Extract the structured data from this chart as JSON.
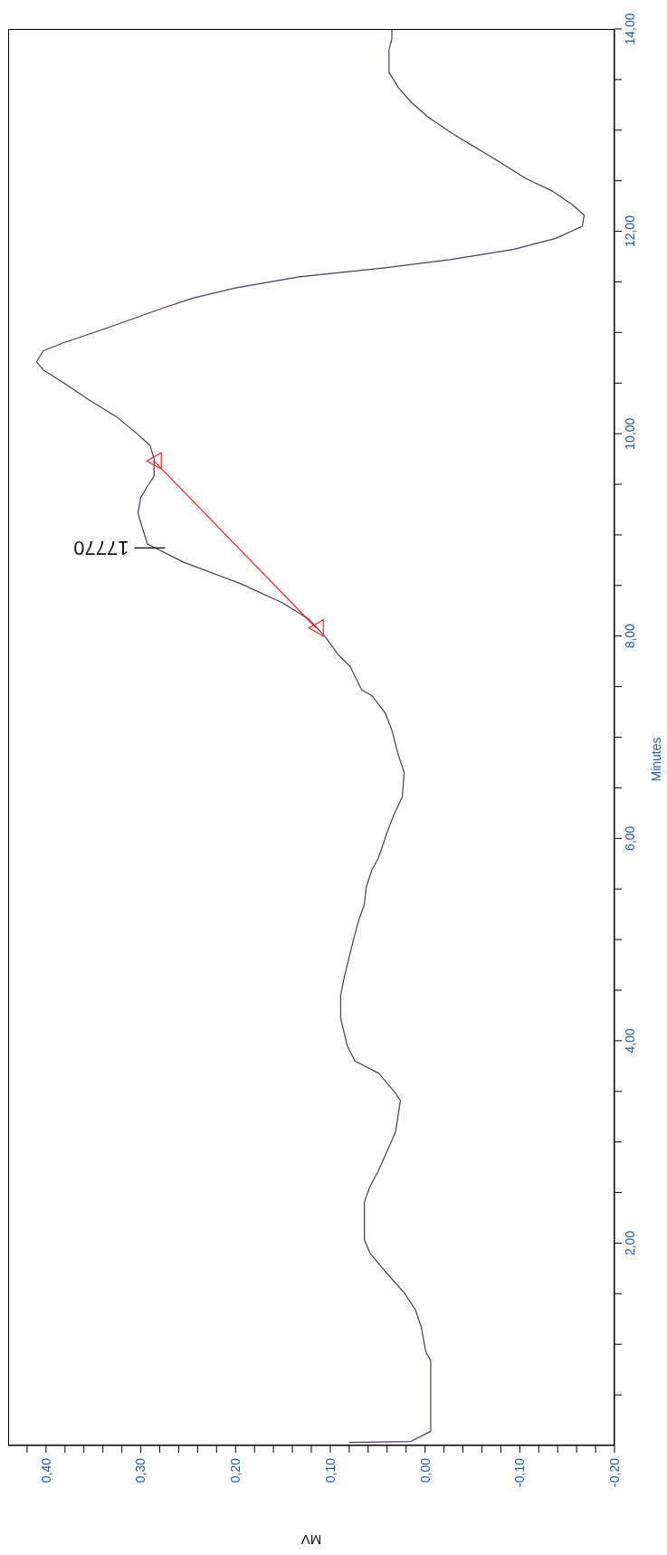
{
  "chart_data": {
    "type": "line",
    "xlabel": "MV",
    "ylabel": "Minutes",
    "xlim": [
      0.44,
      -0.2
    ],
    "ylim": [
      0,
      14
    ],
    "yticks": [
      {
        "value": 0.5,
        "label": null
      },
      {
        "value": 1,
        "label": null
      },
      {
        "value": 1.5,
        "label": null
      },
      {
        "value": 2,
        "label": "2,00"
      },
      {
        "value": 2.5,
        "label": null
      },
      {
        "value": 3,
        "label": null
      },
      {
        "value": 3.5,
        "label": null
      },
      {
        "value": 4,
        "label": "4,00"
      },
      {
        "value": 4.5,
        "label": null
      },
      {
        "value": 5,
        "label": null
      },
      {
        "value": 5.5,
        "label": null
      },
      {
        "value": 6,
        "label": "6,00"
      },
      {
        "value": 6.5,
        "label": null
      },
      {
        "value": 7,
        "label": null
      },
      {
        "value": 7.5,
        "label": null
      },
      {
        "value": 8,
        "label": "8,00"
      },
      {
        "value": 8.5,
        "label": null
      },
      {
        "value": 9,
        "label": null
      },
      {
        "value": 9.5,
        "label": null
      },
      {
        "value": 10,
        "label": "10,00"
      },
      {
        "value": 10.5,
        "label": null
      },
      {
        "value": 11,
        "label": null
      },
      {
        "value": 11.5,
        "label": null
      },
      {
        "value": 12,
        "label": "12,00"
      },
      {
        "value": 12.5,
        "label": null
      },
      {
        "value": 13,
        "label": null
      },
      {
        "value": 13.5,
        "label": null
      },
      {
        "value": 14,
        "label": "14,00"
      }
    ],
    "xticks": [
      {
        "value": -0.2,
        "label": "-0,20"
      },
      {
        "value": -0.18,
        "label": null
      },
      {
        "value": -0.16,
        "label": null
      },
      {
        "value": -0.14,
        "label": null
      },
      {
        "value": -0.12,
        "label": null
      },
      {
        "value": -0.1,
        "label": "-0,10"
      },
      {
        "value": -0.08,
        "label": null
      },
      {
        "value": -0.06,
        "label": null
      },
      {
        "value": -0.04,
        "label": null
      },
      {
        "value": -0.02,
        "label": null
      },
      {
        "value": 0,
        "label": "0,00"
      },
      {
        "value": 0.02,
        "label": null
      },
      {
        "value": 0.04,
        "label": null
      },
      {
        "value": 0.06,
        "label": null
      },
      {
        "value": 0.08,
        "label": null
      },
      {
        "value": 0.1,
        "label": "0,10"
      },
      {
        "value": 0.12,
        "label": null
      },
      {
        "value": 0.14,
        "label": null
      },
      {
        "value": 0.16,
        "label": null
      },
      {
        "value": 0.18,
        "label": null
      },
      {
        "value": 0.2,
        "label": "0,20"
      },
      {
        "value": 0.22,
        "label": null
      },
      {
        "value": 0.24,
        "label": null
      },
      {
        "value": 0.26,
        "label": null
      },
      {
        "value": 0.28,
        "label": null
      },
      {
        "value": 0.3,
        "label": "0,30"
      },
      {
        "value": 0.32,
        "label": null
      },
      {
        "value": 0.34,
        "label": null
      },
      {
        "value": 0.36,
        "label": null
      },
      {
        "value": 0.38,
        "label": null
      },
      {
        "value": 0.4,
        "label": "0,40"
      },
      {
        "value": 0.42,
        "label": null
      }
    ],
    "annotations": [
      {
        "text": "17770",
        "x": 0.28,
        "y": 8.87
      }
    ],
    "series": [
      {
        "color": "#4b3a5a",
        "x": [
          0.08,
          0.015,
          -0.006,
          -0.006,
          -0.001,
          0.004,
          0.01,
          0.022,
          0.042,
          0.058,
          0.064,
          0.064,
          0.058,
          0.049,
          0.04,
          0.031,
          0.026,
          0.031,
          0.049,
          0.074,
          0.082,
          0.089,
          0.089,
          0.085,
          0.08,
          0.076,
          0.071,
          0.064,
          0.062,
          0.056,
          0.049,
          0.04,
          0.033,
          0.024,
          0.022,
          0.028,
          0.035,
          0.042,
          0.056,
          0.067,
          0.079,
          0.092,
          0.105,
          0.123,
          0.151,
          0.195,
          0.255,
          0.293,
          0.3,
          0.303,
          0.3,
          0.293,
          0.286,
          0.286,
          0.29,
          0.304,
          0.326,
          0.354,
          0.381,
          0.403,
          0.41,
          0.403,
          0.381,
          0.34,
          0.277,
          0.245,
          0.2,
          0.133,
          0.042,
          -0.026,
          -0.093,
          -0.138,
          -0.166,
          -0.168,
          -0.156,
          -0.134,
          -0.107,
          -0.071,
          -0.03,
          -0.003,
          0.015,
          0.028,
          0.038,
          0.038,
          0.035,
          0.035
        ],
        "values": [
          0.03,
          0.04,
          0.14,
          0.84,
          0.92,
          1.17,
          1.34,
          1.51,
          1.72,
          1.9,
          2.03,
          2.41,
          2.56,
          2.72,
          2.91,
          3.1,
          3.41,
          3.48,
          3.68,
          3.8,
          3.95,
          4.22,
          4.45,
          4.64,
          4.83,
          4.98,
          5.16,
          5.35,
          5.52,
          5.69,
          5.81,
          6.06,
          6.23,
          6.41,
          6.65,
          6.82,
          7.07,
          7.24,
          7.41,
          7.47,
          7.7,
          7.82,
          7.99,
          8.17,
          8.33,
          8.52,
          8.73,
          8.91,
          9.12,
          9.22,
          9.37,
          9.48,
          9.58,
          9.75,
          9.88,
          10.0,
          10.17,
          10.33,
          10.5,
          10.63,
          10.71,
          10.82,
          10.9,
          11.03,
          11.24,
          11.34,
          11.44,
          11.55,
          11.64,
          11.72,
          11.82,
          11.93,
          12.05,
          12.16,
          12.26,
          12.4,
          12.52,
          12.73,
          12.96,
          13.13,
          13.28,
          13.42,
          13.57,
          13.8,
          13.9,
          14.0
        ]
      },
      {
        "color": "#ff2020",
        "marker": "triangle",
        "x": [
          0.115,
          0.286
        ],
        "values": [
          8.08,
          9.73
        ]
      }
    ]
  }
}
